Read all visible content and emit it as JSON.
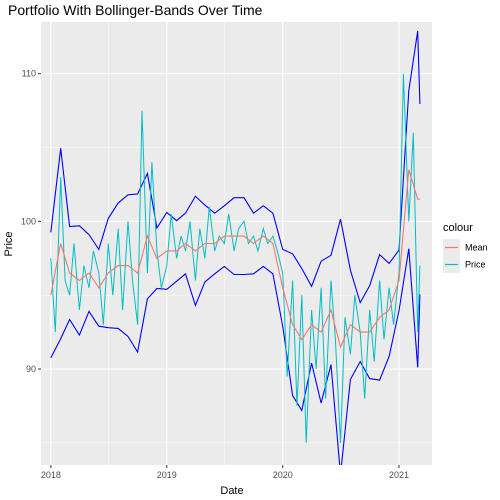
{
  "chart_data": {
    "type": "line",
    "title": "Portfolio With Bollinger-Bands Over Time",
    "xlabel": "Date",
    "ylabel": "Price",
    "x_ticks": [
      "2018",
      "2019",
      "2020",
      "2021"
    ],
    "y_ticks": [
      90,
      100,
      110
    ],
    "xlim": [
      "2017-12-01",
      "2021-04-15"
    ],
    "ylim": [
      83.5,
      113.5
    ],
    "grid": true,
    "legend": {
      "title": "colour",
      "placement": "right",
      "entries": [
        {
          "label": "Mean",
          "color": "#F8766D"
        },
        {
          "label": "Price",
          "color": "#00BFC4"
        }
      ]
    },
    "bands_color": "#0000FF",
    "series": [
      {
        "name": "Price",
        "color": "#00BFC4",
        "points": [
          [
            "2018-01-01",
            97.5
          ],
          [
            "2018-01-15",
            92.5
          ],
          [
            "2018-02-01",
            103.0
          ],
          [
            "2018-02-15",
            96.0
          ],
          [
            "2018-03-01",
            95.0
          ],
          [
            "2018-03-15",
            98.5
          ],
          [
            "2018-04-01",
            94.0
          ],
          [
            "2018-04-15",
            97.0
          ],
          [
            "2018-05-01",
            95.5
          ],
          [
            "2018-05-15",
            98.0
          ],
          [
            "2018-06-01",
            96.5
          ],
          [
            "2018-06-15",
            93.0
          ],
          [
            "2018-07-01",
            98.5
          ],
          [
            "2018-07-15",
            95.0
          ],
          [
            "2018-08-01",
            99.5
          ],
          [
            "2018-08-15",
            94.0
          ],
          [
            "2018-09-01",
            100.0
          ],
          [
            "2018-09-15",
            96.0
          ],
          [
            "2018-10-01",
            93.0
          ],
          [
            "2018-10-15",
            107.5
          ],
          [
            "2018-11-01",
            96.5
          ],
          [
            "2018-11-15",
            104.0
          ],
          [
            "2018-12-01",
            98.0
          ],
          [
            "2018-12-15",
            95.5
          ],
          [
            "2019-01-01",
            97.0
          ],
          [
            "2019-01-15",
            100.5
          ],
          [
            "2019-02-01",
            97.5
          ],
          [
            "2019-02-15",
            99.0
          ],
          [
            "2019-03-01",
            98.0
          ],
          [
            "2019-03-15",
            100.0
          ],
          [
            "2019-04-01",
            96.0
          ],
          [
            "2019-04-15",
            99.5
          ],
          [
            "2019-05-01",
            97.5
          ],
          [
            "2019-05-15",
            101.0
          ],
          [
            "2019-06-01",
            98.0
          ],
          [
            "2019-06-15",
            99.0
          ],
          [
            "2019-07-01",
            98.5
          ],
          [
            "2019-07-15",
            100.5
          ],
          [
            "2019-08-01",
            98.0
          ],
          [
            "2019-08-15",
            99.5
          ],
          [
            "2019-09-01",
            100.0
          ],
          [
            "2019-09-15",
            98.5
          ],
          [
            "2019-10-01",
            99.0
          ],
          [
            "2019-10-15",
            98.0
          ],
          [
            "2019-11-01",
            99.5
          ],
          [
            "2019-11-15",
            98.5
          ],
          [
            "2019-12-01",
            99.0
          ],
          [
            "2019-12-15",
            98.0
          ],
          [
            "2020-01-01",
            96.5
          ],
          [
            "2020-01-15",
            89.5
          ],
          [
            "2020-02-01",
            96.0
          ],
          [
            "2020-02-15",
            87.5
          ],
          [
            "2020-03-01",
            95.0
          ],
          [
            "2020-03-15",
            85.0
          ],
          [
            "2020-04-01",
            94.0
          ],
          [
            "2020-04-15",
            90.0
          ],
          [
            "2020-05-01",
            95.5
          ],
          [
            "2020-05-15",
            88.0
          ],
          [
            "2020-06-01",
            96.0
          ],
          [
            "2020-06-15",
            92.0
          ],
          [
            "2020-07-01",
            85.0
          ],
          [
            "2020-07-15",
            93.5
          ],
          [
            "2020-08-01",
            91.0
          ],
          [
            "2020-08-15",
            95.0
          ],
          [
            "2020-09-01",
            92.5
          ],
          [
            "2020-09-15",
            88.0
          ],
          [
            "2020-10-01",
            94.0
          ],
          [
            "2020-10-15",
            90.5
          ],
          [
            "2020-11-01",
            96.0
          ],
          [
            "2020-11-15",
            92.0
          ],
          [
            "2020-12-01",
            95.5
          ],
          [
            "2020-12-15",
            93.0
          ],
          [
            "2021-01-01",
            96.5
          ],
          [
            "2021-01-15",
            110.0
          ],
          [
            "2021-02-01",
            100.0
          ],
          [
            "2021-02-15",
            106.0
          ],
          [
            "2021-03-01",
            92.5
          ],
          [
            "2021-03-08",
            97.0
          ]
        ]
      },
      {
        "name": "Mean",
        "color": "#F8766D",
        "points": [
          [
            "2018-01-01",
            95.0
          ],
          [
            "2018-02-01",
            98.5
          ],
          [
            "2018-03-01",
            96.5
          ],
          [
            "2018-04-01",
            96.0
          ],
          [
            "2018-05-01",
            96.5
          ],
          [
            "2018-06-01",
            95.5
          ],
          [
            "2018-07-01",
            96.5
          ],
          [
            "2018-08-01",
            97.0
          ],
          [
            "2018-09-01",
            97.0
          ],
          [
            "2018-10-01",
            96.5
          ],
          [
            "2018-11-01",
            99.0
          ],
          [
            "2018-12-01",
            97.5
          ],
          [
            "2019-01-01",
            98.0
          ],
          [
            "2019-02-01",
            98.0
          ],
          [
            "2019-03-01",
            98.5
          ],
          [
            "2019-04-01",
            98.0
          ],
          [
            "2019-05-01",
            98.5
          ],
          [
            "2019-06-01",
            98.5
          ],
          [
            "2019-07-01",
            99.0
          ],
          [
            "2019-08-01",
            99.0
          ],
          [
            "2019-09-01",
            99.0
          ],
          [
            "2019-10-01",
            98.5
          ],
          [
            "2019-11-01",
            99.0
          ],
          [
            "2019-12-01",
            98.5
          ],
          [
            "2020-01-01",
            95.5
          ],
          [
            "2020-02-01",
            93.0
          ],
          [
            "2020-03-01",
            92.0
          ],
          [
            "2020-04-01",
            93.0
          ],
          [
            "2020-05-01",
            92.5
          ],
          [
            "2020-06-01",
            94.0
          ],
          [
            "2020-07-01",
            91.5
          ],
          [
            "2020-08-01",
            93.0
          ],
          [
            "2020-09-01",
            92.5
          ],
          [
            "2020-10-01",
            92.5
          ],
          [
            "2020-11-01",
            93.5
          ],
          [
            "2020-12-01",
            94.0
          ],
          [
            "2021-01-01",
            96.0
          ],
          [
            "2021-02-01",
            103.5
          ],
          [
            "2021-03-01",
            101.5
          ],
          [
            "2021-03-08",
            101.5
          ]
        ]
      }
    ]
  }
}
